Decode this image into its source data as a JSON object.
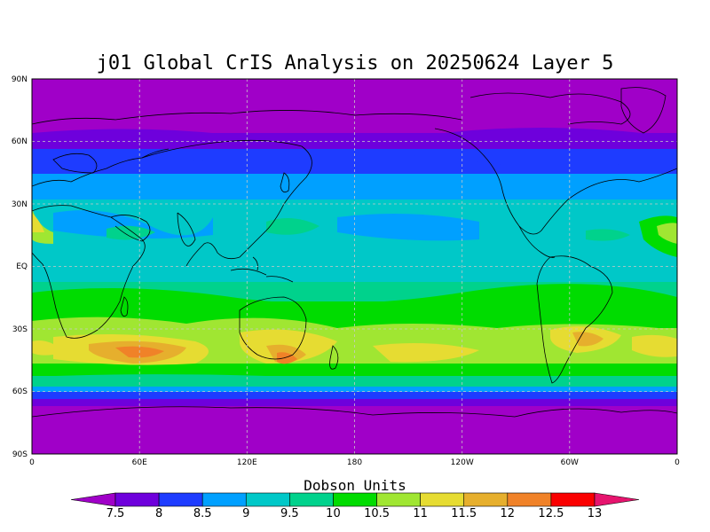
{
  "title": "j01 Global CrIS Analysis on 20250624 Layer 5",
  "colorbar_label": "Dobson Units",
  "lat_ticks": [
    "90N",
    "60N",
    "30N",
    "EQ",
    "30S",
    "60S",
    "90S"
  ],
  "lon_ticks": [
    "0",
    "60E",
    "120E",
    "180",
    "120W",
    "60W",
    "0"
  ],
  "colorbar": {
    "ticks": [
      "7.5",
      "8",
      "8.5",
      "9",
      "9.5",
      "10",
      "10.5",
      "11",
      "11.5",
      "12",
      "12.5",
      "13"
    ],
    "colors": [
      "#a000c8",
      "#6e00dc",
      "#1e3cff",
      "#00a0ff",
      "#00c8c8",
      "#00d28c",
      "#00dc00",
      "#a0e632",
      "#e6dc32",
      "#e6af2d",
      "#f08228",
      "#fa0000",
      "#e6146e"
    ]
  },
  "colors": {
    "bg_polar": "#a000c8",
    "grid": "#c8c8c8"
  }
}
